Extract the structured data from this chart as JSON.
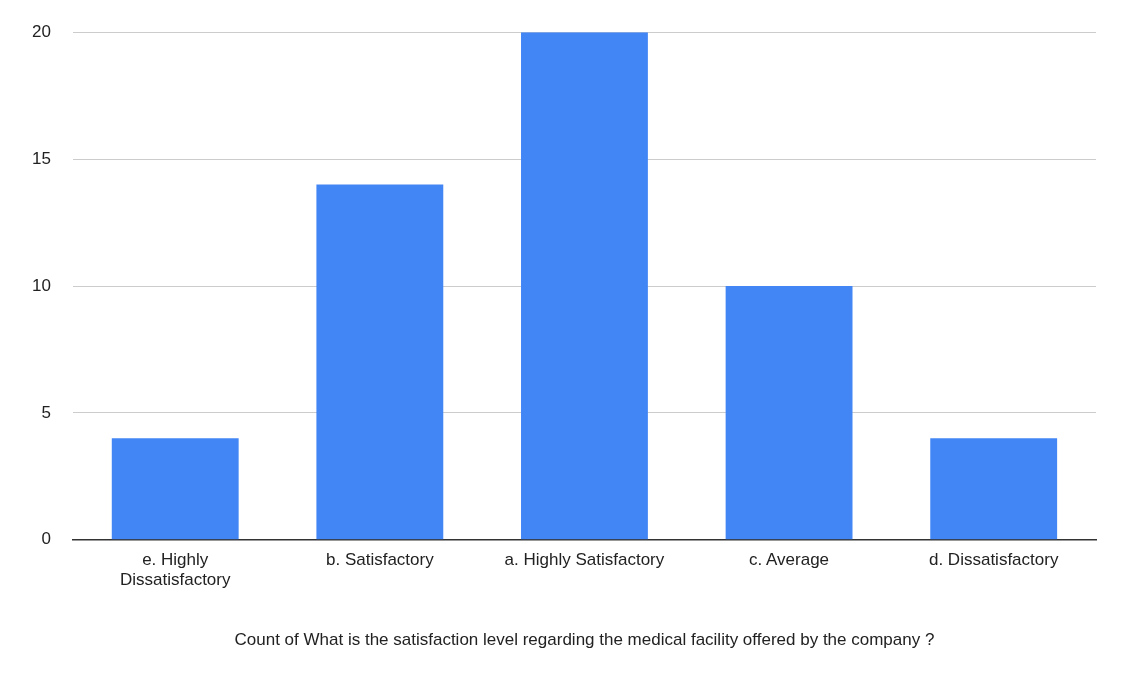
{
  "chart_data": {
    "type": "bar",
    "xlabel": "Count of What is the satisfaction level regarding the medical facility offered by the company ?",
    "categories": [
      "e. Highly Dissatisfactory",
      "b. Satisfactory",
      "a. Highly Satisfactory",
      "c. Average",
      "d. Dissatisfactory"
    ],
    "values": [
      4,
      14,
      20,
      10,
      4
    ],
    "color": "#4285f4",
    "ylim": [
      0,
      20
    ],
    "yticks": [
      0,
      5,
      10,
      15,
      20
    ],
    "grid": "y",
    "legend": false
  }
}
